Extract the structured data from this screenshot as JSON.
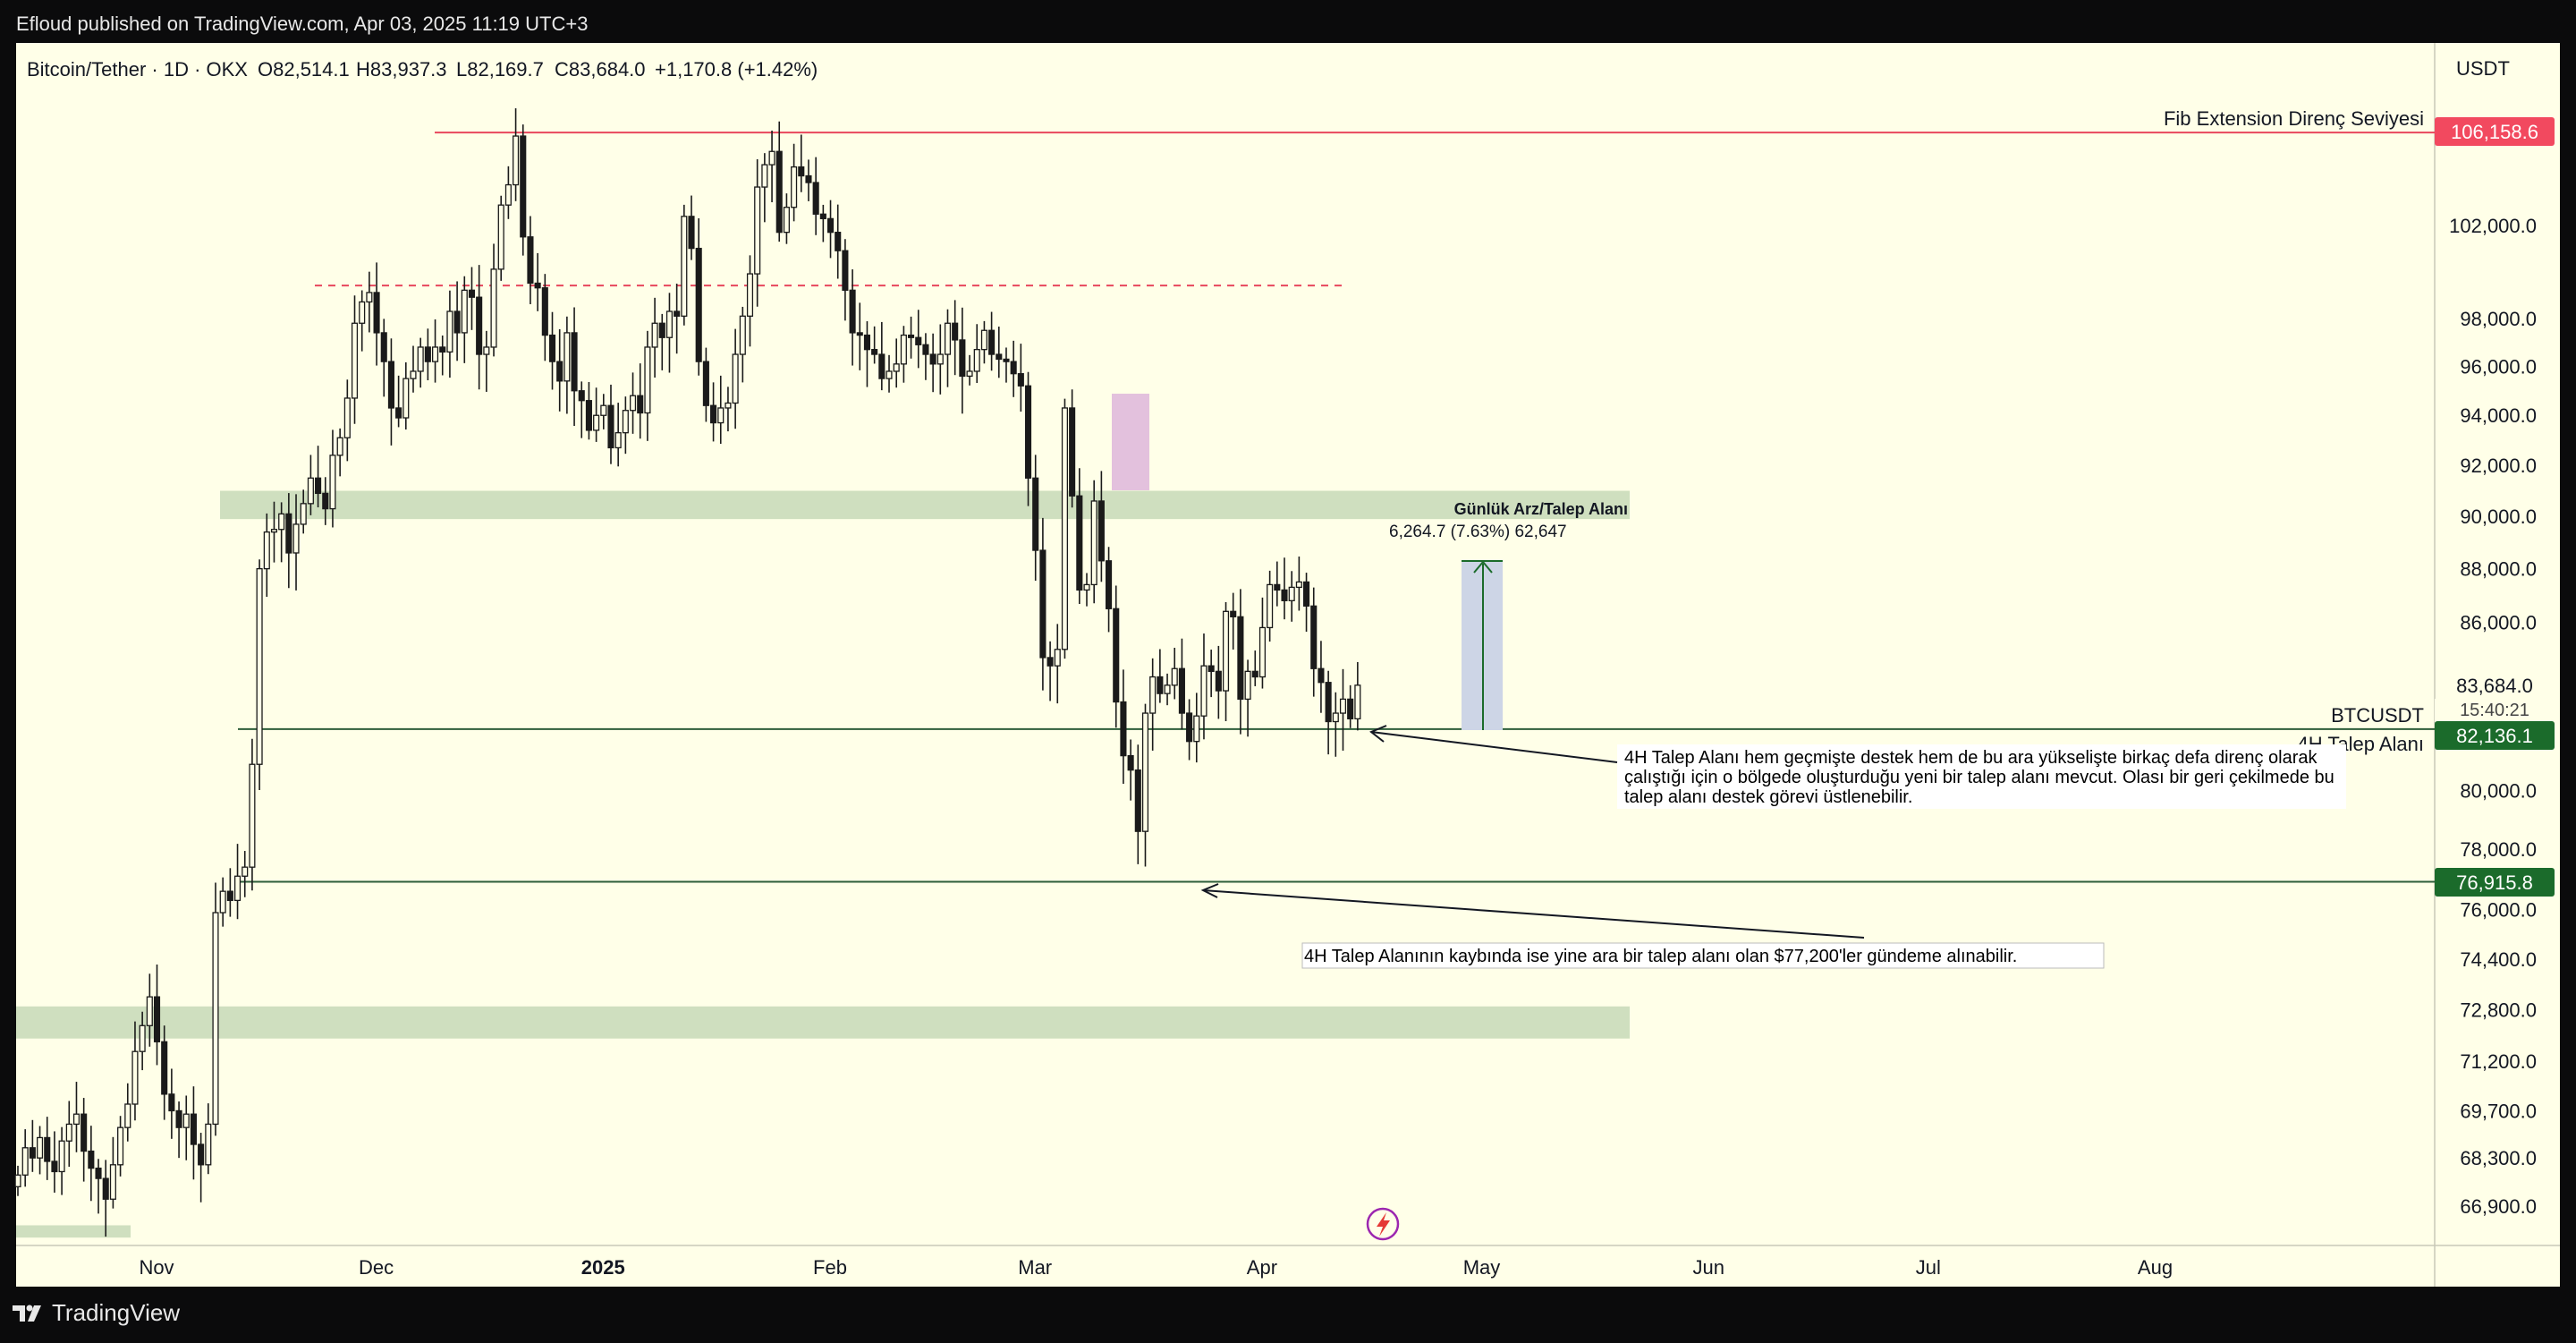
{
  "header": {
    "publisher": "Efloud published on TradingView.com, Apr 03, 2025 11:19 UTC+3"
  },
  "footer": {
    "brand": "TradingView"
  },
  "colors": {
    "chart_bg": "#ffffe8",
    "page_bg": "#0b0b0c",
    "zone": "#cfdfbf",
    "resistance": "#e8475d",
    "up_candle": "#1a1a1a",
    "pink_zone": "#e3c1dd",
    "measure_box": "#cdd5e6",
    "price_tag": "#1b6b2b"
  },
  "chart_data": {
    "type": "candlestick",
    "symbol_line": {
      "pair": "Bitcoin/Tether · 1D · OKX",
      "open": "O82,514.1",
      "high": "H83,937.3",
      "low": "L82,169.7",
      "close": "C83,684.0",
      "change": "+1,170.8 (+1.42%)"
    },
    "currency": "USDT",
    "y_ticks": [
      "102,000.0",
      "98,000.0",
      "96,000.0",
      "94,000.0",
      "92,000.0",
      "90,000.0",
      "88,000.0",
      "86,000.0",
      "80,000.0",
      "78,000.0",
      "76,000.0",
      "74,400.0",
      "72,800.0",
      "71,200.0",
      "69,700.0",
      "68,300.0",
      "66,900.0"
    ],
    "x_ticks": [
      "Nov",
      "Dec",
      "2025",
      "Feb",
      "Mar",
      "Apr",
      "May",
      "Jun",
      "Jul",
      "Aug"
    ],
    "price_tags": {
      "resistance": "106,158.6",
      "support_4h": "82,136.1",
      "support_low": "76,915.8",
      "current": "83,684.0",
      "countdown": "15:40:21",
      "ticker": "BTCUSDT"
    },
    "labels": {
      "fib": "Fib Extension Direnç Seviyesi",
      "daily_zone": "Günlük Arz/Talep Alanı",
      "measure": "6,264.7 (7.63%) 62,647",
      "talep_4h": "4H Talep Alanı",
      "note1": "4H Talep Alanı hem geçmişte destek hem de bu ara yükselişte birkaç defa direnç olarak çalıştığı için o bölgede oluşturduğu yeni bir talep alanı mevcut. Olası bir geri çekilmede bu talep alanı destek görevi üstlenebilir.",
      "note2": "4H Talep Alanının kaybında ise yine ara bir talep alanı olan $77,200'ler gündeme alınabilir."
    },
    "levels": {
      "resistance": 106158.6,
      "dashed": 99400,
      "support_4h": 82136.1,
      "support_low": 76915.8
    },
    "zones": [
      {
        "name": "daily",
        "low": 89900,
        "high": 91000
      },
      {
        "name": "lower",
        "low": 71900,
        "high": 72900
      },
      {
        "name": "bottom",
        "low": 66000,
        "high": 66350
      }
    ],
    "closes": [
      67800,
      68600,
      68300,
      68900,
      68200,
      67900,
      68800,
      69300,
      69600,
      68500,
      68000,
      67700,
      67100,
      68100,
      69200,
      69900,
      71500,
      72300,
      73200,
      71800,
      70200,
      69700,
      69200,
      69600,
      68700,
      68100,
      69300,
      75900,
      76600,
      76300,
      77100,
      77400,
      80900,
      88000,
      89400,
      89500,
      90100,
      88600,
      89700,
      90500,
      91500,
      90900,
      90300,
      92400,
      93100,
      94700,
      97800,
      98700,
      99100,
      97400,
      96200,
      94300,
      93900,
      95500,
      95800,
      96800,
      96200,
      96800,
      96600,
      98300,
      97400,
      99200,
      98900,
      96500,
      96800,
      100100,
      102900,
      103800,
      106000,
      101500,
      99500,
      99300,
      97300,
      96200,
      95400,
      97400,
      95000,
      94600,
      93400,
      94000,
      94400,
      92700,
      93300,
      94200,
      94800,
      94100,
      96800,
      97800,
      97200,
      98300,
      98100,
      102400,
      101000,
      96200,
      94400,
      93700,
      94300,
      94500,
      96500,
      98100,
      99900,
      103700,
      104700,
      105300,
      101700,
      102800,
      104600,
      104200,
      103900,
      102500,
      102300,
      101700,
      100900,
      99200,
      97400,
      97300,
      96700,
      96500,
      95500,
      95800,
      96100,
      97300,
      97200,
      96900,
      96500,
      96100,
      96500,
      97800,
      97100,
      95600,
      95800,
      96700,
      97500,
      96500,
      96300,
      96200,
      95700,
      95200,
      91500,
      88700,
      84700,
      84400,
      85000,
      94300,
      90800,
      87200,
      87400,
      90600,
      88300,
      86500,
      83100,
      81200,
      80700,
      78600,
      82700,
      84000,
      83400,
      83700,
      84300,
      82700,
      81700,
      82600,
      84400,
      84200,
      83500,
      86400,
      86200,
      83200,
      84200,
      84000,
      85800,
      87400,
      87200,
      86800,
      87300,
      87500,
      86600,
      84300,
      83800,
      82400,
      82700,
      83200,
      82500,
      83700
    ]
  }
}
